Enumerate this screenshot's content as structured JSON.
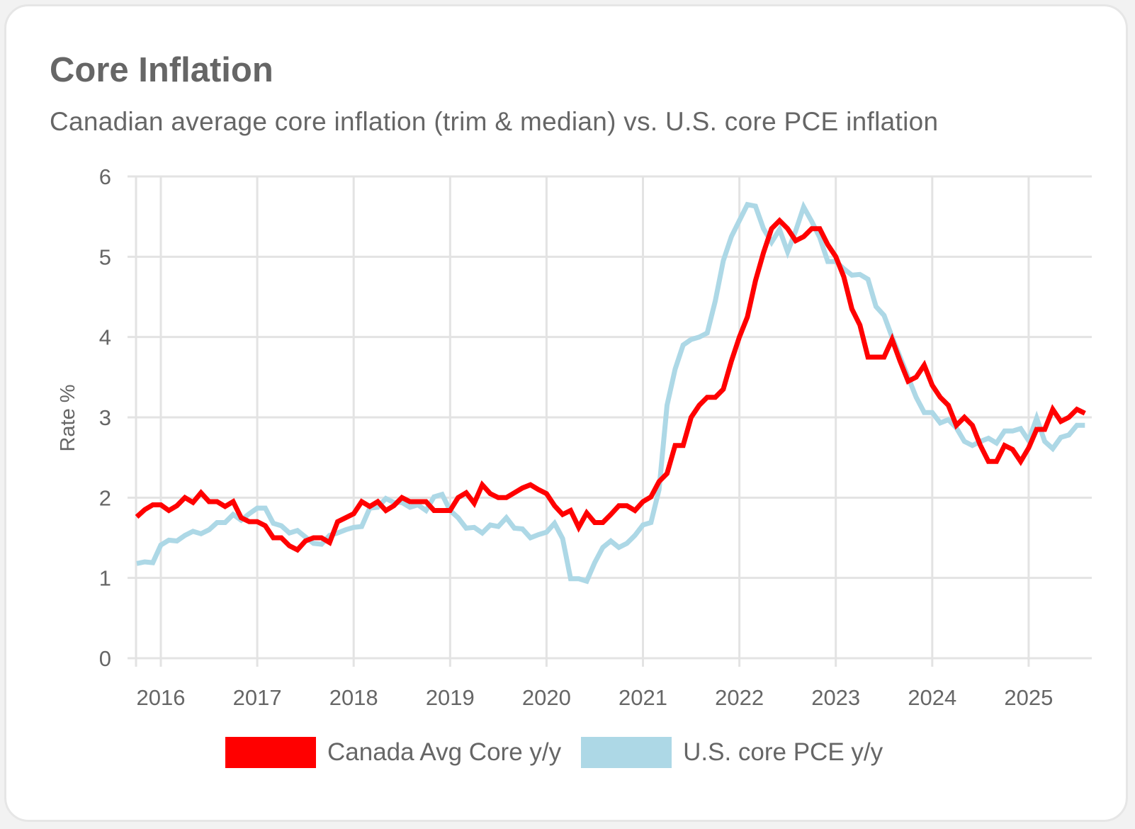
{
  "header": {
    "title": "Core Inflation",
    "subtitle": "Canadian average core inflation (trim & median) vs. U.S. core PCE inflation"
  },
  "chart_data": {
    "type": "line",
    "title": "Core Inflation",
    "subtitle": "Canadian average core inflation (trim & median) vs. U.S. core PCE inflation",
    "xlabel": "",
    "ylabel": "Rate %",
    "ylim": [
      0,
      6
    ],
    "yticks": [
      "0",
      "1",
      "2",
      "3",
      "4",
      "5",
      "6"
    ],
    "xticks": [
      "2016",
      "2017",
      "2018",
      "2019",
      "2020",
      "2021",
      "2022",
      "2023",
      "2024",
      "2025"
    ],
    "grid": true,
    "legend_position": "bottom",
    "x_start": "2015-10",
    "x_end": "2025-08",
    "x_frequency": "monthly",
    "series": [
      {
        "name": "Canada Avg Core y/y",
        "color": "#ff0000",
        "values": [
          1.76,
          1.85,
          1.91,
          1.91,
          1.84,
          1.9,
          2.0,
          1.94,
          2.06,
          1.95,
          1.95,
          1.89,
          1.95,
          1.75,
          1.7,
          1.7,
          1.65,
          1.5,
          1.5,
          1.4,
          1.35,
          1.46,
          1.5,
          1.5,
          1.44,
          1.7,
          1.75,
          1.8,
          1.95,
          1.89,
          1.95,
          1.84,
          1.9,
          2.0,
          1.95,
          1.95,
          1.95,
          1.84,
          1.84,
          1.84,
          2.0,
          2.06,
          1.93,
          2.16,
          2.05,
          2.0,
          2.0,
          2.06,
          2.12,
          2.16,
          2.1,
          2.05,
          1.9,
          1.79,
          1.84,
          1.63,
          1.81,
          1.69,
          1.69,
          1.79,
          1.9,
          1.9,
          1.84,
          1.95,
          2.01,
          2.2,
          2.3,
          2.65,
          2.65,
          3.0,
          3.15,
          3.25,
          3.25,
          3.35,
          3.7,
          4.0,
          4.25,
          4.7,
          5.05,
          5.35,
          5.45,
          5.35,
          5.2,
          5.25,
          5.35,
          5.35,
          5.15,
          5.0,
          4.75,
          4.35,
          4.15,
          3.75,
          3.75,
          3.75,
          3.97,
          3.7,
          3.45,
          3.5,
          3.65,
          3.4,
          3.25,
          3.15,
          2.9,
          3.0,
          2.9,
          2.65,
          2.45,
          2.45,
          2.65,
          2.6,
          2.45,
          2.62,
          2.85,
          2.85,
          3.1,
          2.95,
          3.0,
          3.1,
          3.05
        ]
      },
      {
        "name": "U.S. core PCE y/y",
        "color": "#add8e6",
        "values": [
          1.18,
          1.2,
          1.19,
          1.41,
          1.47,
          1.46,
          1.53,
          1.58,
          1.55,
          1.6,
          1.69,
          1.69,
          1.79,
          1.72,
          1.8,
          1.87,
          1.87,
          1.68,
          1.65,
          1.56,
          1.59,
          1.51,
          1.43,
          1.42,
          1.53,
          1.56,
          1.6,
          1.63,
          1.64,
          1.87,
          1.88,
          1.99,
          1.94,
          1.94,
          1.88,
          1.91,
          1.84,
          2.01,
          2.04,
          1.84,
          1.75,
          1.62,
          1.63,
          1.56,
          1.66,
          1.64,
          1.75,
          1.62,
          1.61,
          1.5,
          1.54,
          1.57,
          1.68,
          1.49,
          0.99,
          0.99,
          0.96,
          1.19,
          1.38,
          1.46,
          1.38,
          1.43,
          1.53,
          1.66,
          1.69,
          2.1,
          3.15,
          3.6,
          3.9,
          3.97,
          4.0,
          4.05,
          4.45,
          4.95,
          5.25,
          5.45,
          5.65,
          5.63,
          5.35,
          5.18,
          5.34,
          5.06,
          5.32,
          5.62,
          5.44,
          5.24,
          4.94,
          4.94,
          4.85,
          4.77,
          4.78,
          4.72,
          4.38,
          4.27,
          4.0,
          3.75,
          3.5,
          3.25,
          3.06,
          3.06,
          2.93,
          2.97,
          2.87,
          2.7,
          2.65,
          2.7,
          2.74,
          2.68,
          2.83,
          2.83,
          2.86,
          2.71,
          2.99,
          2.7,
          2.61,
          2.75,
          2.78,
          2.9,
          2.9
        ]
      }
    ]
  }
}
